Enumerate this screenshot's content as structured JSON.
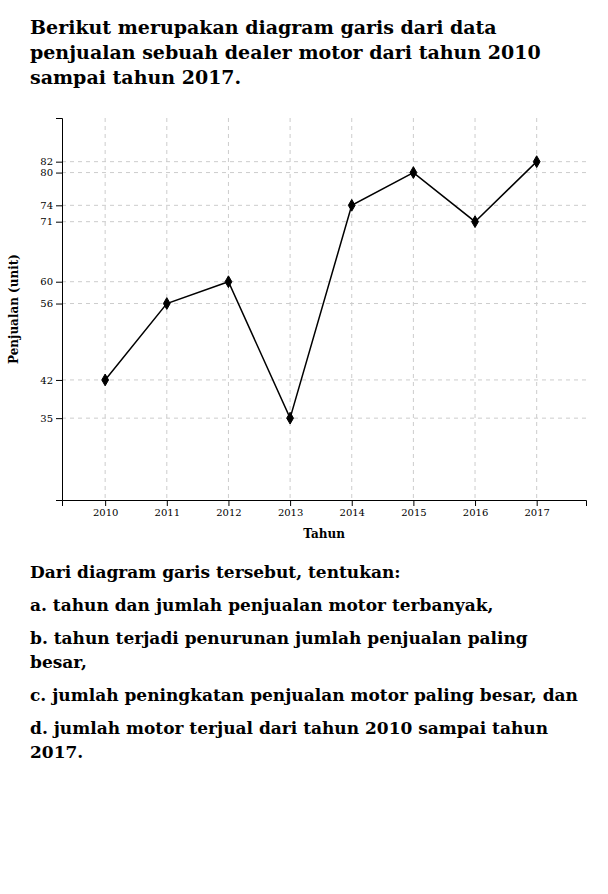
{
  "chart_data": {
    "type": "line",
    "title": "Berikut merupakan diagram garis dari data penjualan sebuah dealer motor dari tahun 2010 sampai tahun 2017.",
    "x_label": "Tahun",
    "y_label": "Penjualan (unit)",
    "x": [
      2010,
      2011,
      2012,
      2013,
      2014,
      2015,
      2016,
      2017
    ],
    "values": [
      42,
      56,
      60,
      35,
      74,
      80,
      71,
      82
    ],
    "color": "#000000",
    "marker": "diamond",
    "xlim": [
      2009.3,
      2017.8
    ],
    "xticks": [
      2010,
      2011,
      2012,
      2013,
      2014,
      2015,
      2016,
      2017
    ],
    "ylim": [
      20,
      90
    ],
    "yticks": [
      35,
      42,
      56,
      60,
      71,
      74,
      80,
      82
    ],
    "grid": true,
    "annotations": [
      "Dari diagram garis tersebut, tentukan:",
      "a. tahun dan jumlah penjualan motor terbanyak,",
      "b. tahun terjadi penurunan jumlah penjualan paling besar,",
      "c. jumlah peningkatan penjualan motor paling besar, dan",
      "d. jumlah motor terjual dari tahun 2010 sampai tahun 2017."
    ]
  }
}
